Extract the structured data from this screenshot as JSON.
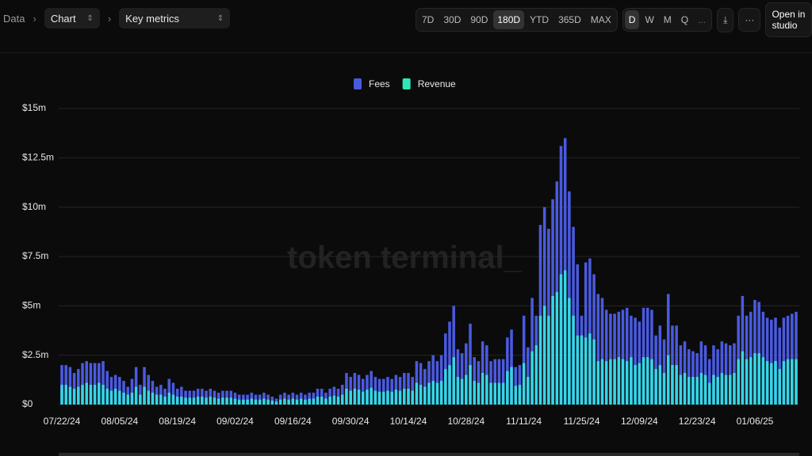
{
  "toolbar": {
    "breadcrumb": "Data",
    "view": "Chart",
    "metric": "Key metrics",
    "ranges": [
      "7D",
      "30D",
      "90D",
      "180D",
      "YTD",
      "365D",
      "MAX"
    ],
    "range_selected": 3,
    "granularities": [
      "D",
      "W",
      "M",
      "Q"
    ],
    "granularity_selected": 0,
    "more": "...",
    "menu": "···",
    "studio": "Open in studio"
  },
  "watermark": "token terminal_",
  "chart_data": {
    "type": "bar",
    "legend_position": "top",
    "grid": true,
    "ylim": [
      0,
      15
    ],
    "yticks": [
      {
        "value": 0,
        "label": "$0"
      },
      {
        "value": 2.5,
        "label": "$2.5m"
      },
      {
        "value": 5,
        "label": "$5m"
      },
      {
        "value": 7.5,
        "label": "$7.5m"
      },
      {
        "value": 10,
        "label": "$10m"
      },
      {
        "value": 12.5,
        "label": "$12.5m"
      },
      {
        "value": 15,
        "label": "$15m"
      }
    ],
    "categories": [
      "07/22/24",
      null,
      null,
      null,
      null,
      null,
      null,
      null,
      null,
      null,
      null,
      null,
      null,
      null,
      "08/05/24",
      null,
      null,
      null,
      null,
      null,
      null,
      null,
      null,
      null,
      null,
      null,
      null,
      null,
      "08/19/24",
      null,
      null,
      null,
      null,
      null,
      null,
      null,
      null,
      null,
      null,
      null,
      null,
      null,
      "09/02/24",
      null,
      null,
      null,
      null,
      null,
      null,
      null,
      null,
      null,
      null,
      null,
      null,
      null,
      "09/16/24",
      null,
      null,
      null,
      null,
      null,
      null,
      null,
      null,
      null,
      null,
      null,
      null,
      null,
      "09/30/24",
      null,
      null,
      null,
      null,
      null,
      null,
      null,
      null,
      null,
      null,
      null,
      null,
      null,
      "10/14/24",
      null,
      null,
      null,
      null,
      null,
      null,
      null,
      null,
      null,
      null,
      null,
      null,
      null,
      "10/28/24",
      null,
      null,
      null,
      null,
      null,
      null,
      null,
      null,
      null,
      null,
      null,
      null,
      null,
      "11/11/24",
      null,
      null,
      null,
      null,
      null,
      null,
      null,
      null,
      null,
      null,
      null,
      null,
      null,
      "11/25/24",
      null,
      null,
      null,
      null,
      null,
      null,
      null,
      null,
      null,
      null,
      null,
      null,
      null,
      "12/09/24",
      null,
      null,
      null,
      null,
      null,
      null,
      null,
      null,
      null,
      null,
      null,
      null,
      null,
      "12/23/24",
      null,
      null,
      null,
      null,
      null,
      null,
      null,
      null,
      null,
      null,
      null,
      null,
      null,
      "01/06/25",
      null,
      null,
      null,
      null,
      null,
      null,
      null,
      null,
      null,
      null
    ],
    "series": [
      {
        "name": "Fees",
        "color": "#4a5ae0",
        "values": [
          2.0,
          2.0,
          1.9,
          1.6,
          1.8,
          2.1,
          2.2,
          2.1,
          2.1,
          2.1,
          2.2,
          1.7,
          1.4,
          1.5,
          1.4,
          1.2,
          0.9,
          1.3,
          1.9,
          1.0,
          1.9,
          1.5,
          1.2,
          0.9,
          1.0,
          0.8,
          1.3,
          1.1,
          0.8,
          0.9,
          0.7,
          0.7,
          0.7,
          0.8,
          0.8,
          0.7,
          0.8,
          0.7,
          0.6,
          0.7,
          0.7,
          0.7,
          0.6,
          0.5,
          0.5,
          0.5,
          0.6,
          0.5,
          0.5,
          0.6,
          0.5,
          0.4,
          0.3,
          0.5,
          0.6,
          0.5,
          0.6,
          0.5,
          0.6,
          0.5,
          0.6,
          0.6,
          0.8,
          0.8,
          0.6,
          0.8,
          0.9,
          0.8,
          1.0,
          1.6,
          1.4,
          1.6,
          1.5,
          1.3,
          1.5,
          1.7,
          1.4,
          1.3,
          1.3,
          1.4,
          1.3,
          1.5,
          1.4,
          1.6,
          1.6,
          1.4,
          2.2,
          2.1,
          1.8,
          2.2,
          2.5,
          2.2,
          2.5,
          3.6,
          4.2,
          5.0,
          2.8,
          2.6,
          3.1,
          4.1,
          2.4,
          2.2,
          3.2,
          3.0,
          2.2,
          2.3,
          2.3,
          2.3,
          3.4,
          3.8,
          1.9,
          2.0,
          4.5,
          2.9,
          5.4,
          4.5,
          9.1,
          10.0,
          8.9,
          10.4,
          11.3,
          13.1,
          13.5,
          10.8,
          9.0,
          7.1,
          4.5,
          7.2,
          7.4,
          6.6,
          5.6,
          5.4,
          4.8,
          4.6,
          4.6,
          4.7,
          4.8,
          4.9,
          4.5,
          4.4,
          4.2,
          4.9,
          4.9,
          4.8,
          3.5,
          4.0,
          3.3,
          5.6,
          4.0,
          4.0,
          3.0,
          3.2,
          2.8,
          2.7,
          2.6,
          3.2,
          3.0,
          2.3,
          3.0,
          2.8,
          3.2,
          3.1,
          3.0,
          3.1,
          4.5,
          5.5,
          4.5,
          4.7,
          5.3,
          5.2,
          4.7,
          4.4,
          4.3,
          4.4,
          3.9,
          4.4,
          4.5,
          4.6,
          4.7
        ]
      },
      {
        "name": "Revenue",
        "color": "#35d6e6",
        "legend_color": "#2ee6b8",
        "values": [
          1.0,
          1.0,
          0.9,
          0.8,
          0.9,
          1.0,
          1.1,
          1.0,
          1.0,
          1.1,
          1.0,
          0.8,
          0.7,
          0.8,
          0.7,
          0.6,
          0.5,
          0.6,
          0.9,
          0.5,
          0.9,
          0.7,
          0.6,
          0.5,
          0.5,
          0.4,
          0.6,
          0.5,
          0.4,
          0.4,
          0.35,
          0.35,
          0.35,
          0.4,
          0.4,
          0.35,
          0.4,
          0.35,
          0.3,
          0.35,
          0.35,
          0.35,
          0.3,
          0.25,
          0.25,
          0.25,
          0.3,
          0.25,
          0.25,
          0.3,
          0.25,
          0.2,
          0.15,
          0.25,
          0.3,
          0.25,
          0.3,
          0.25,
          0.3,
          0.25,
          0.3,
          0.3,
          0.4,
          0.4,
          0.3,
          0.4,
          0.45,
          0.4,
          0.5,
          0.8,
          0.7,
          0.8,
          0.75,
          0.65,
          0.75,
          0.85,
          0.7,
          0.65,
          0.65,
          0.7,
          0.65,
          0.75,
          0.7,
          0.8,
          0.8,
          0.7,
          1.1,
          1.0,
          0.9,
          1.1,
          1.2,
          1.1,
          1.2,
          1.8,
          2.0,
          2.4,
          1.4,
          1.3,
          1.5,
          2.0,
          1.2,
          1.1,
          1.6,
          1.5,
          1.1,
          1.1,
          1.1,
          1.1,
          1.7,
          1.9,
          0.95,
          1.0,
          2.1,
          1.4,
          2.7,
          3.0,
          4.5,
          5.0,
          4.5,
          5.5,
          5.7,
          6.6,
          6.8,
          5.4,
          4.5,
          3.5,
          3.5,
          3.4,
          3.6,
          3.3,
          2.2,
          2.3,
          2.2,
          2.3,
          2.3,
          2.4,
          2.3,
          2.2,
          2.4,
          2.0,
          2.1,
          2.4,
          2.4,
          2.3,
          1.8,
          2.0,
          1.6,
          2.5,
          2.0,
          2.0,
          1.5,
          1.6,
          1.4,
          1.4,
          1.4,
          1.6,
          1.5,
          1.1,
          1.5,
          1.4,
          1.6,
          1.5,
          1.5,
          1.6,
          2.3,
          2.7,
          2.3,
          2.4,
          2.6,
          2.6,
          2.4,
          2.2,
          2.1,
          2.2,
          1.8,
          2.2,
          2.3,
          2.3,
          2.3
        ]
      }
    ]
  }
}
